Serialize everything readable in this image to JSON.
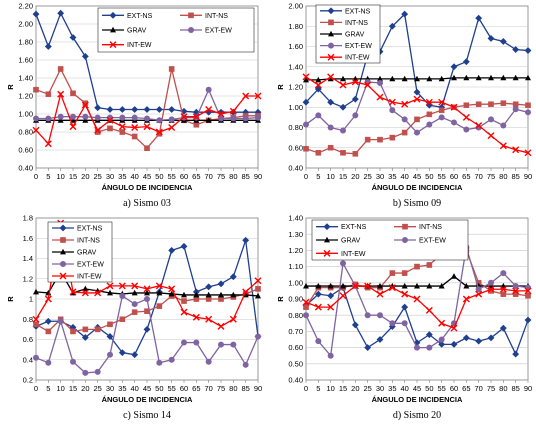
{
  "styles": {
    "EXT-NS": {
      "color": "#1f3f8f",
      "marker": "diamond",
      "line": true
    },
    "INT-NS": {
      "color": "#c0504d",
      "marker": "square",
      "line": true
    },
    "GRAV": {
      "color": "#000000",
      "marker": "triangle",
      "line": true
    },
    "EXT-EW": {
      "color": "#8064a2",
      "marker": "circle",
      "line": true
    },
    "INT-EW": {
      "color": "#ff0000",
      "marker": "x",
      "line": true
    }
  },
  "chart_data": [
    {
      "type": "line",
      "caption": "a) Sismo 03",
      "xlabel": "ÁNGULO DE INCIDENCIA",
      "ylabel": "R",
      "xlim": [
        0,
        90
      ],
      "ylim": [
        0.4,
        2.2
      ],
      "yticks": [
        "0.40",
        "0.60",
        "0.80",
        "1.00",
        "1.20",
        "1.40",
        "1.60",
        "1.80",
        "2.00",
        "2.20"
      ],
      "xticks": [
        0,
        5,
        10,
        15,
        20,
        25,
        30,
        35,
        40,
        45,
        50,
        55,
        60,
        65,
        70,
        75,
        80,
        85,
        90
      ],
      "grid": true,
      "legend": [
        [
          "EXT-NS",
          "INT-NS"
        ],
        [
          "GRAV",
          "EXT-EW"
        ],
        [
          "INT-EW"
        ]
      ],
      "legend_position": "top-right",
      "x": [
        0,
        5,
        10,
        15,
        20,
        25,
        30,
        35,
        40,
        45,
        50,
        55,
        60,
        65,
        70,
        75,
        80,
        85,
        90
      ],
      "series": [
        {
          "name": "EXT-NS",
          "values": [
            2.11,
            1.75,
            2.12,
            1.85,
            1.64,
            1.07,
            1.05,
            1.05,
            1.05,
            1.05,
            1.05,
            1.05,
            1.03,
            1.02,
            1.02,
            1.02,
            1.02,
            1.02,
            1.02
          ]
        },
        {
          "name": "INT-NS",
          "values": [
            1.27,
            1.22,
            1.5,
            1.23,
            1.12,
            0.8,
            0.84,
            0.8,
            0.75,
            0.62,
            0.78,
            1.5,
            0.93,
            0.88,
            0.93,
            0.95,
            0.96,
            0.98,
            0.98
          ]
        },
        {
          "name": "GRAV",
          "values": [
            0.93,
            0.93,
            0.93,
            0.93,
            0.93,
            0.93,
            0.93,
            0.93,
            0.93,
            0.93,
            0.93,
            0.93,
            0.93,
            0.93,
            0.93,
            0.93,
            0.93,
            0.93,
            0.93
          ]
        },
        {
          "name": "EXT-EW",
          "values": [
            0.95,
            0.95,
            0.97,
            0.97,
            0.97,
            0.96,
            0.96,
            0.96,
            0.96,
            0.95,
            0.93,
            0.94,
            0.96,
            0.96,
            1.27,
            0.95,
            0.95,
            0.95,
            0.96
          ]
        },
        {
          "name": "INT-EW",
          "values": [
            0.82,
            0.67,
            1.22,
            0.86,
            1.1,
            0.82,
            0.93,
            0.86,
            0.85,
            0.86,
            0.8,
            0.85,
            0.97,
            0.97,
            1.05,
            1.0,
            1.03,
            1.2,
            1.2
          ]
        }
      ]
    },
    {
      "type": "line",
      "caption": "b) Sismo 09",
      "xlabel": "ÁNGULO DE INCIDENCIA",
      "ylabel": "R",
      "xlim": [
        0,
        90
      ],
      "ylim": [
        0.4,
        2.0
      ],
      "yticks": [
        "0.40",
        "0.60",
        "0.80",
        "1.00",
        "1.20",
        "1.40",
        "1.60",
        "1.80",
        "2.00"
      ],
      "xticks": [
        0,
        5,
        10,
        15,
        20,
        25,
        30,
        35,
        40,
        45,
        50,
        55,
        60,
        65,
        70,
        75,
        80,
        85,
        90
      ],
      "grid": true,
      "legend": [
        [
          "EXT-NS"
        ],
        [
          "INT-NS"
        ],
        [
          "GRAV"
        ],
        [
          "EXT-EW"
        ],
        [
          "INT-EW"
        ]
      ],
      "legend_position": "top-left",
      "x": [
        0,
        5,
        10,
        15,
        20,
        25,
        30,
        35,
        40,
        45,
        50,
        55,
        60,
        65,
        70,
        75,
        80,
        85,
        90
      ],
      "series": [
        {
          "name": "EXT-NS",
          "values": [
            1.05,
            1.18,
            1.05,
            1.0,
            1.08,
            1.52,
            1.55,
            1.8,
            1.92,
            1.15,
            1.02,
            1.0,
            1.4,
            1.45,
            1.88,
            1.68,
            1.65,
            1.57,
            1.56
          ]
        },
        {
          "name": "INT-NS",
          "values": [
            0.59,
            0.55,
            0.6,
            0.55,
            0.54,
            0.68,
            0.68,
            0.7,
            0.75,
            0.88,
            0.93,
            0.97,
            1.0,
            1.02,
            1.03,
            1.03,
            1.04,
            1.03,
            1.02
          ]
        },
        {
          "name": "GRAV",
          "values": [
            1.27,
            1.27,
            1.28,
            1.28,
            1.28,
            1.28,
            1.28,
            1.28,
            1.28,
            1.28,
            1.28,
            1.28,
            1.29,
            1.29,
            1.29,
            1.29,
            1.29,
            1.29,
            1.29
          ]
        },
        {
          "name": "EXT-EW",
          "values": [
            0.83,
            0.92,
            0.8,
            0.77,
            0.92,
            1.25,
            1.24,
            0.97,
            0.88,
            0.75,
            0.83,
            0.9,
            0.85,
            0.78,
            0.8,
            0.88,
            0.82,
            0.98,
            0.95
          ]
        },
        {
          "name": "INT-EW",
          "values": [
            1.3,
            1.22,
            1.3,
            1.22,
            1.25,
            1.22,
            1.1,
            1.05,
            1.03,
            1.08,
            1.05,
            1.05,
            1.0,
            0.9,
            0.82,
            0.72,
            0.62,
            0.58,
            0.55
          ]
        }
      ]
    },
    {
      "type": "line",
      "caption": "c) Sismo 14",
      "xlabel": "ÁNGULO DE INCIDENCIA",
      "ylabel": "R",
      "xlim": [
        0,
        90
      ],
      "ylim": [
        0.2,
        1.8
      ],
      "yticks": [
        "0.2",
        "0.4",
        "0.6",
        "0.8",
        "1",
        "1.2",
        "1.4",
        "1.6",
        "1.8"
      ],
      "xticks": [
        0,
        5,
        10,
        15,
        20,
        25,
        30,
        35,
        40,
        45,
        50,
        55,
        60,
        65,
        70,
        75,
        80,
        85,
        90
      ],
      "grid": true,
      "legend": [
        [
          "EXT-NS"
        ],
        [
          "INT-NS"
        ],
        [
          "GRAV"
        ],
        [
          "EXT-EW"
        ],
        [
          "INT-EW"
        ]
      ],
      "legend_position": "top-left",
      "x": [
        0,
        5,
        10,
        15,
        20,
        25,
        30,
        35,
        40,
        45,
        50,
        55,
        60,
        65,
        70,
        75,
        80,
        85,
        90
      ],
      "series": [
        {
          "name": "EXT-NS",
          "values": [
            0.73,
            0.78,
            0.78,
            0.72,
            0.62,
            0.72,
            0.63,
            0.47,
            0.45,
            0.7,
            1.07,
            1.48,
            1.52,
            1.07,
            1.12,
            1.15,
            1.22,
            1.58,
            0.63
          ]
        },
        {
          "name": "INT-NS",
          "values": [
            0.75,
            0.68,
            0.8,
            0.68,
            0.7,
            0.7,
            0.75,
            0.8,
            0.87,
            0.88,
            0.93,
            1.03,
            0.98,
            1.0,
            1.0,
            1.0,
            1.02,
            1.05,
            1.1
          ]
        },
        {
          "name": "GRAV",
          "values": [
            1.07,
            1.06,
            1.27,
            1.06,
            1.1,
            1.08,
            1.06,
            1.05,
            1.06,
            1.06,
            1.06,
            1.05,
            1.04,
            1.04,
            1.04,
            1.04,
            1.04,
            1.04,
            1.03
          ]
        },
        {
          "name": "EXT-EW",
          "values": [
            0.42,
            0.37,
            0.78,
            0.38,
            0.27,
            0.28,
            0.45,
            1.03,
            0.95,
            1.0,
            0.37,
            0.4,
            0.57,
            0.57,
            0.38,
            0.55,
            0.55,
            0.35,
            0.63
          ]
        },
        {
          "name": "INT-EW",
          "values": [
            0.8,
            1.0,
            1.75,
            1.07,
            1.06,
            1.06,
            1.13,
            1.13,
            1.13,
            1.1,
            1.13,
            1.1,
            0.87,
            0.82,
            0.8,
            0.73,
            0.8,
            1.07,
            1.18
          ]
        }
      ]
    },
    {
      "type": "line",
      "caption": "d) Sismo 20",
      "xlabel": "ÁNGULO DE INCIDENCIA",
      "ylabel": "R",
      "xlim": [
        0,
        90
      ],
      "ylim": [
        0.4,
        1.4
      ],
      "yticks": [
        "0.40",
        "0.50",
        "0.60",
        "0.70",
        "0.80",
        "0.90",
        "1.00",
        "1.10",
        "1.20",
        "1.30",
        "1.40"
      ],
      "xticks": [
        0,
        5,
        10,
        15,
        20,
        25,
        30,
        35,
        40,
        45,
        50,
        55,
        60,
        65,
        70,
        75,
        80,
        85,
        90
      ],
      "grid": true,
      "legend": [
        [
          "EXT-NS",
          "INT-NS"
        ],
        [
          "GRAV",
          "EXT-EW"
        ],
        [
          "INT-EW"
        ]
      ],
      "legend_position": "top-right",
      "x": [
        0,
        5,
        10,
        15,
        20,
        25,
        30,
        35,
        40,
        45,
        50,
        55,
        60,
        65,
        70,
        75,
        80,
        85,
        90
      ],
      "series": [
        {
          "name": "EXT-NS",
          "values": [
            0.86,
            0.93,
            0.92,
            0.97,
            0.74,
            0.6,
            0.65,
            0.73,
            0.85,
            0.63,
            0.68,
            0.62,
            0.62,
            0.66,
            0.64,
            0.66,
            0.72,
            0.56,
            0.77
          ]
        },
        {
          "name": "INT-NS",
          "values": [
            0.85,
            0.97,
            0.97,
            0.97,
            0.99,
            0.97,
            0.97,
            1.06,
            1.06,
            1.1,
            1.11,
            1.18,
            1.23,
            1.2,
            1.0,
            0.95,
            0.93,
            0.93,
            0.92
          ]
        },
        {
          "name": "GRAV",
          "values": [
            0.98,
            0.98,
            0.98,
            0.98,
            0.98,
            0.98,
            0.98,
            0.98,
            0.98,
            0.98,
            0.98,
            0.98,
            1.04,
            0.98,
            0.98,
            0.98,
            0.98,
            0.98,
            0.98
          ]
        },
        {
          "name": "EXT-EW",
          "values": [
            0.8,
            0.64,
            0.55,
            1.12,
            0.98,
            0.8,
            0.8,
            0.75,
            0.75,
            0.6,
            0.6,
            0.65,
            0.75,
            1.22,
            0.96,
            1.0,
            1.06,
            0.98,
            0.97
          ]
        },
        {
          "name": "INT-EW",
          "values": [
            0.88,
            0.85,
            0.85,
            0.92,
            0.98,
            0.98,
            0.93,
            0.97,
            0.93,
            0.9,
            0.83,
            0.75,
            0.72,
            0.9,
            0.93,
            0.96,
            0.96,
            0.95,
            0.95
          ]
        }
      ]
    }
  ]
}
